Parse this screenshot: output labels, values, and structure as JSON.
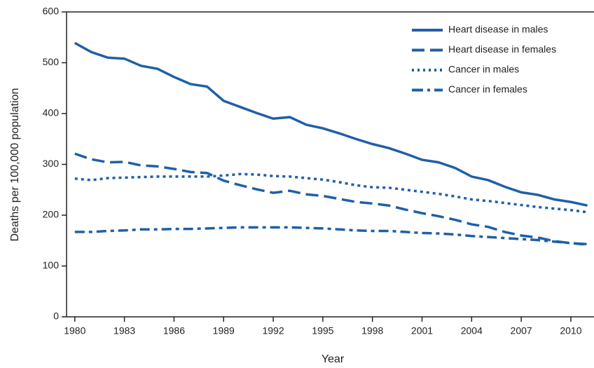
{
  "chart_data": {
    "type": "line",
    "xlabel": "Year",
    "ylabel": "Deaths per 100,000 population",
    "x": [
      1980,
      1981,
      1982,
      1983,
      1984,
      1985,
      1986,
      1987,
      1988,
      1989,
      1990,
      1991,
      1992,
      1993,
      1994,
      1995,
      1996,
      1997,
      1998,
      1999,
      2000,
      2001,
      2002,
      2003,
      2004,
      2005,
      2006,
      2007,
      2008,
      2009,
      2010,
      2011
    ],
    "series": [
      {
        "name": "Heart disease in males",
        "color": "#1f5fa8",
        "dash": "solid",
        "values": [
          539,
          521,
          510,
          508,
          494,
          488,
          472,
          458,
          453,
          425,
          413,
          401,
          390,
          393,
          378,
          371,
          361,
          350,
          340,
          332,
          321,
          309,
          304,
          293,
          276,
          269,
          256,
          245,
          240,
          231,
          226,
          219
        ]
      },
      {
        "name": "Heart disease in females",
        "color": "#1f5fa8",
        "dash": "dashed",
        "values": [
          321,
          310,
          304,
          305,
          298,
          296,
          291,
          285,
          283,
          268,
          259,
          251,
          244,
          248,
          241,
          238,
          232,
          226,
          223,
          219,
          211,
          204,
          198,
          191,
          182,
          177,
          167,
          160,
          156,
          149,
          145,
          143
        ]
      },
      {
        "name": "Cancer in males",
        "color": "#1f5fa8",
        "dash": "dotted",
        "values": [
          272,
          269,
          273,
          274,
          275,
          276,
          276,
          276,
          276,
          278,
          281,
          280,
          277,
          276,
          273,
          270,
          265,
          259,
          255,
          254,
          250,
          246,
          242,
          237,
          231,
          228,
          224,
          220,
          216,
          213,
          210,
          206
        ]
      },
      {
        "name": "Cancer in females",
        "color": "#1f5fa8",
        "dash": "dashdot",
        "values": [
          167,
          167,
          169,
          170,
          172,
          172,
          173,
          173,
          174,
          175,
          176,
          176,
          176,
          176,
          175,
          174,
          172,
          170,
          169,
          169,
          167,
          165,
          164,
          162,
          159,
          157,
          155,
          153,
          151,
          148,
          145,
          142
        ]
      }
    ],
    "xlim": [
      1979.5,
      2011.4
    ],
    "xticks": [
      1980,
      1983,
      1986,
      1989,
      1992,
      1995,
      1998,
      2001,
      2004,
      2007,
      2010
    ],
    "ylim": [
      0,
      600
    ],
    "yticks": [
      0,
      100,
      200,
      300,
      400,
      500,
      600
    ],
    "legend": "top-right"
  }
}
